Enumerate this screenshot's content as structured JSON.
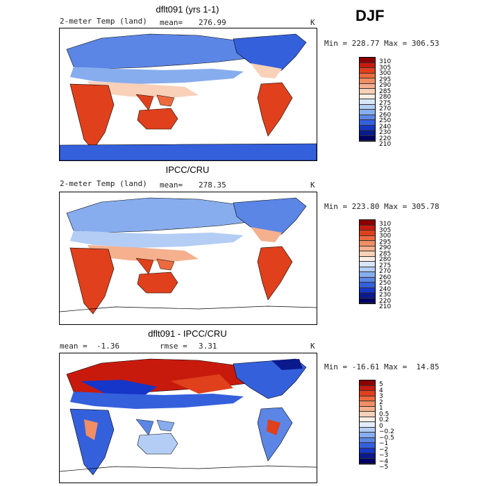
{
  "season": "DJF",
  "panels": [
    {
      "title": "dflt091 (yrs 1-1)",
      "left_label": "2-meter Temp (land)",
      "stat_label": "mean=",
      "stat_value": "276.99",
      "unit": "K",
      "minmax_text": "Min = 228.77 Max = 306.53",
      "colorbar_labels": [
        "310",
        "305",
        "300",
        "295",
        "290",
        "285",
        "280",
        "275",
        "270",
        "260",
        "250",
        "240",
        "230",
        "220",
        "210"
      ]
    },
    {
      "title": "IPCC/CRU",
      "left_label": "2-meter Temp (land)",
      "stat_label": "mean=",
      "stat_value": "278.35",
      "unit": "K",
      "minmax_text": "Min = 223.80 Max = 305.78",
      "colorbar_labels": [
        "310",
        "305",
        "300",
        "295",
        "290",
        "285",
        "280",
        "275",
        "270",
        "260",
        "250",
        "240",
        "230",
        "220",
        "210"
      ]
    },
    {
      "title": "dflt091 - IPCC/CRU",
      "left_label": "mean =  -1.36",
      "stat_label": "rmse =",
      "stat_value": "3.31",
      "unit": "K",
      "minmax_text": "Min = -16.61 Max =  14.85",
      "colorbar_labels": [
        "5",
        "4",
        "3",
        "2",
        "1",
        "0.5",
        "0.2",
        "0",
        "−0.2",
        "−0.5",
        "−1",
        "−2",
        "−3",
        "−4",
        "−5"
      ]
    }
  ],
  "colors": {
    "temp_scale": [
      "#8b0000",
      "#c81a0c",
      "#e0401c",
      "#ec6a3e",
      "#f18e64",
      "#f5b08e",
      "#f9d0b8",
      "#fbeee4",
      "#d8e6fa",
      "#b3cdf5",
      "#87adee",
      "#5b86e6",
      "#3560dc",
      "#1536c8",
      "#0a1a8c",
      "#000066"
    ],
    "diff_scale": [
      "#8b0000",
      "#c81a0c",
      "#e0401c",
      "#ec6a3e",
      "#f18e64",
      "#f5b08e",
      "#f9d0b8",
      "#fbeee4",
      "#e4eefc",
      "#b3cdf5",
      "#87adee",
      "#5b86e6",
      "#3560dc",
      "#1536c8",
      "#0a1a8c",
      "#000066"
    ]
  }
}
